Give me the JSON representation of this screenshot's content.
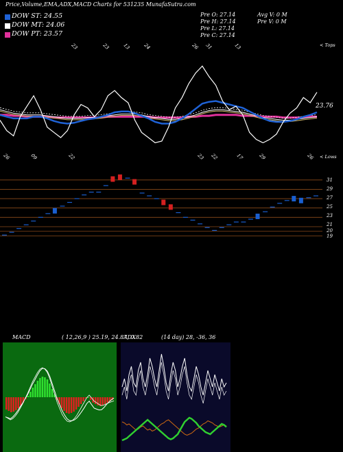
{
  "header": {
    "title": "Price,Volume,EMA,ADX,MACD Charts for 531235 MunafaSutra.com",
    "dow": [
      {
        "label": "DOW ST: 24.55",
        "color": "#1f62d6"
      },
      {
        "label": "DOW MT: 24.06",
        "color": "#ffffff"
      },
      {
        "label": "DOW PT: 23.57",
        "color": "#e0309a"
      }
    ],
    "prev_col1": [
      "Pre  O: 27.14",
      "Pre  H: 27.14",
      "Pre  L: 27.14",
      "Pre  C: 27.14"
    ],
    "avg_v": "Avg V: 0  M",
    "pre_v": "Pre  V: 0  M"
  },
  "colors": {
    "ema_short": "#1f62d6",
    "ema_mid": "#ffffff",
    "ema_long": "#e0309a",
    "price": "#ffffff",
    "bar_up": "#1a5fd0",
    "bar_down": "#d42020",
    "hline": "#8a4a1a",
    "macd_bg": "#0a6a10",
    "adx_bg": "#0a0a2a",
    "macd_hist_neg": "#e02020",
    "macd_hist_pos": "#30e030",
    "adx_plus": "#30d030",
    "adx_minus": "#d06a10"
  },
  "price_panel": {
    "top_label": "< Tops",
    "low_label": "< Lows",
    "last_value": "23.76",
    "top_dates": [
      "23",
      "23",
      "13",
      "24",
      "26",
      "31",
      "13"
    ],
    "low_dates": [
      "26",
      "09",
      "22",
      "23",
      "22",
      "17",
      "29",
      "26"
    ]
  },
  "chart_data": [
    {
      "type": "line",
      "panel": "price",
      "series": [
        {
          "key": "price",
          "values": [
            25.0,
            23.8,
            23.2,
            25.4,
            26.6,
            27.8,
            26.2,
            24.2,
            23.6,
            23.0,
            23.8,
            25.6,
            26.8,
            26.4,
            25.4,
            26.2,
            27.8,
            28.4,
            27.6,
            27.0,
            25.0,
            23.6,
            23.0,
            22.4,
            22.6,
            24.2,
            26.4,
            27.6,
            29.2,
            30.4,
            31.2,
            30.0,
            29.0,
            27.2,
            26.2,
            26.6,
            25.6,
            23.6,
            22.8,
            22.4,
            22.8,
            23.4,
            24.8,
            25.8,
            26.4,
            27.6,
            27.0,
            28.2
          ]
        },
        {
          "key": "ema_short",
          "values": [
            25.6,
            25.4,
            25.2,
            25.2,
            25.2,
            25.4,
            25.4,
            25.2,
            24.9,
            24.7,
            24.6,
            24.7,
            24.9,
            25.1,
            25.2,
            25.4,
            25.6,
            25.9,
            26.0,
            26.0,
            25.8,
            25.5,
            25.2,
            24.8,
            24.6,
            24.6,
            24.8,
            25.2,
            25.7,
            26.3,
            26.9,
            27.1,
            27.2,
            27.0,
            26.8,
            26.6,
            26.4,
            26.0,
            25.6,
            25.2,
            24.9,
            24.8,
            24.8,
            24.9,
            25.1,
            25.4,
            25.6,
            25.9
          ]
        },
        {
          "key": "ema_mid",
          "values": [
            26.2,
            26.0,
            25.8,
            25.7,
            25.6,
            25.6,
            25.6,
            25.5,
            25.4,
            25.3,
            25.2,
            25.2,
            25.2,
            25.3,
            25.3,
            25.4,
            25.5,
            25.6,
            25.7,
            25.7,
            25.7,
            25.6,
            25.4,
            25.3,
            25.2,
            25.1,
            25.1,
            25.2,
            25.4,
            25.6,
            25.9,
            26.1,
            26.2,
            26.2,
            26.1,
            26.0,
            25.9,
            25.7,
            25.5,
            25.3,
            25.2,
            25.1,
            25.0,
            25.0,
            25.1,
            25.2,
            25.3,
            25.4
          ]
        },
        {
          "key": "ema_long",
          "values": [
            25.6,
            25.6,
            25.5,
            25.5,
            25.4,
            25.4,
            25.4,
            25.4,
            25.3,
            25.3,
            25.3,
            25.3,
            25.3,
            25.3,
            25.3,
            25.3,
            25.4,
            25.4,
            25.4,
            25.4,
            25.4,
            25.4,
            25.4,
            25.3,
            25.3,
            25.3,
            25.3,
            25.3,
            25.4,
            25.4,
            25.5,
            25.5,
            25.6,
            25.6,
            25.6,
            25.6,
            25.5,
            25.5,
            25.5,
            25.4,
            25.4,
            25.4,
            25.3,
            25.3,
            25.3,
            25.3,
            25.4,
            25.4
          ]
        }
      ]
    },
    {
      "type": "bar",
      "panel": "renko",
      "levels": [
        31,
        29,
        27,
        25,
        23,
        21,
        20,
        19
      ],
      "boxes": [
        {
          "i": 0,
          "v": 19.2,
          "d": "up"
        },
        {
          "i": 1,
          "v": 19.8,
          "d": "up"
        },
        {
          "i": 2,
          "v": 20.6,
          "d": "up"
        },
        {
          "i": 3,
          "v": 21.4,
          "d": "up"
        },
        {
          "i": 4,
          "v": 22.2,
          "d": "up"
        },
        {
          "i": 5,
          "v": 23.0,
          "d": "up"
        },
        {
          "i": 6,
          "v": 23.8,
          "d": "up"
        },
        {
          "i": 7,
          "v": 24.4,
          "d": "box"
        },
        {
          "i": 8,
          "v": 25.4,
          "d": "up"
        },
        {
          "i": 9,
          "v": 26.2,
          "d": "up"
        },
        {
          "i": 10,
          "v": 27.0,
          "d": "up"
        },
        {
          "i": 11,
          "v": 27.8,
          "d": "up"
        },
        {
          "i": 12,
          "v": 28.4,
          "d": "up"
        },
        {
          "i": 13,
          "v": 28.4,
          "d": "up"
        },
        {
          "i": 14,
          "v": 29.8,
          "d": "up"
        },
        {
          "i": 15,
          "v": 31.2,
          "d": "down"
        },
        {
          "i": 16,
          "v": 31.6,
          "d": "down"
        },
        {
          "i": 17,
          "v": 31.4,
          "d": "up"
        },
        {
          "i": 18,
          "v": 30.6,
          "d": "down"
        },
        {
          "i": 19,
          "v": 28.2,
          "d": "up"
        },
        {
          "i": 20,
          "v": 27.6,
          "d": "up"
        },
        {
          "i": 21,
          "v": 27.0,
          "d": "up"
        },
        {
          "i": 22,
          "v": 26.2,
          "d": "down"
        },
        {
          "i": 23,
          "v": 25.2,
          "d": "down"
        },
        {
          "i": 24,
          "v": 24.0,
          "d": "up"
        },
        {
          "i": 25,
          "v": 23.0,
          "d": "up"
        },
        {
          "i": 26,
          "v": 22.4,
          "d": "up"
        },
        {
          "i": 27,
          "v": 21.6,
          "d": "up"
        },
        {
          "i": 28,
          "v": 20.8,
          "d": "up"
        },
        {
          "i": 29,
          "v": 20.2,
          "d": "up"
        },
        {
          "i": 30,
          "v": 20.8,
          "d": "up"
        },
        {
          "i": 31,
          "v": 21.4,
          "d": "up"
        },
        {
          "i": 32,
          "v": 22.0,
          "d": "up"
        },
        {
          "i": 33,
          "v": 22.0,
          "d": "up"
        },
        {
          "i": 34,
          "v": 22.6,
          "d": "up"
        },
        {
          "i": 35,
          "v": 23.2,
          "d": "box"
        },
        {
          "i": 36,
          "v": 24.2,
          "d": "up"
        },
        {
          "i": 37,
          "v": 25.2,
          "d": "up"
        },
        {
          "i": 38,
          "v": 26.0,
          "d": "up"
        },
        {
          "i": 39,
          "v": 26.6,
          "d": "up"
        },
        {
          "i": 40,
          "v": 27.0,
          "d": "box"
        },
        {
          "i": 41,
          "v": 26.6,
          "d": "box"
        },
        {
          "i": 42,
          "v": 27.2,
          "d": "up"
        },
        {
          "i": 43,
          "v": 27.6,
          "d": "up"
        }
      ]
    },
    {
      "type": "line",
      "panel": "macd",
      "title": "MACD",
      "params": "( 12,26,9 ) 25.19,  24.87,  0.82",
      "hist": [
        -1.8,
        -2.0,
        -2.2,
        -2.1,
        -1.9,
        -1.6,
        -1.2,
        -0.8,
        -0.3,
        0.2,
        0.8,
        1.4,
        1.9,
        2.4,
        2.8,
        3.0,
        2.9,
        2.6,
        2.0,
        1.2,
        0.4,
        -0.4,
        -1.0,
        -1.6,
        -2.0,
        -2.3,
        -2.4,
        -2.3,
        -2.1,
        -1.8,
        -1.4,
        -1.0,
        -0.6,
        -0.2,
        0.0,
        -0.4,
        -0.8,
        -1.0,
        -1.2,
        -1.3,
        -1.2,
        -1.0,
        -0.8,
        -0.6,
        -0.4
      ]
    },
    {
      "type": "line",
      "panel": "adx",
      "title": "ADX",
      "params": "(14  day) 28,  -36,  36",
      "adx": [
        30,
        34,
        28,
        36,
        40,
        32,
        30,
        38,
        42,
        34,
        30,
        36,
        44,
        40,
        34,
        30,
        38,
        46,
        40,
        32,
        28,
        36,
        42,
        38,
        30,
        34,
        40,
        44,
        36,
        30,
        28,
        34,
        40,
        36,
        30,
        26,
        32,
        38,
        34,
        30,
        36,
        32,
        28,
        34,
        30,
        32
      ],
      "plus_di": [
        8,
        9,
        10,
        12,
        14,
        16,
        18,
        20,
        22,
        24,
        26,
        28,
        26,
        24,
        22,
        20,
        18,
        16,
        14,
        12,
        10,
        9,
        10,
        12,
        14,
        18,
        22,
        26,
        28,
        30,
        29,
        27,
        25,
        22,
        20,
        18,
        16,
        15,
        14,
        16,
        18,
        20,
        22,
        24,
        23,
        21
      ],
      "minus_di": [
        26,
        25,
        23,
        24,
        22,
        20,
        18,
        19,
        21,
        22,
        20,
        18,
        19,
        17,
        18,
        20,
        22,
        24,
        25,
        27,
        28,
        26,
        24,
        22,
        20,
        18,
        16,
        14,
        13,
        14,
        15,
        17,
        19,
        20,
        22,
        24,
        25,
        27,
        26,
        25,
        23,
        22,
        21,
        22,
        23,
        22
      ]
    }
  ]
}
